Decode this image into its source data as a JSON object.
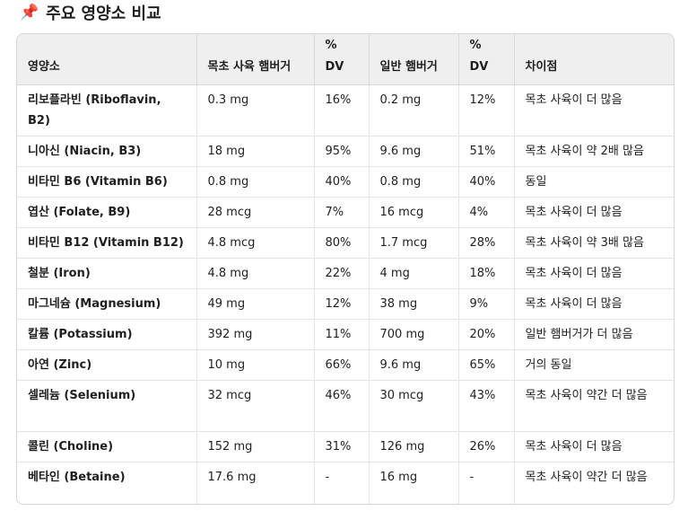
{
  "title": "주요 영양소 비교",
  "pin_icon": "pushpin-icon",
  "headers": [
    "영양소",
    "목초 사육 햄버거",
    "% DV",
    "일반 햄버거",
    "% DV",
    "차이점"
  ],
  "rows": [
    [
      "리보플라빈 (Riboflavin, B2)",
      "0.3 mg",
      "16%",
      "0.2 mg",
      "12%",
      "목초 사육이 더 많음"
    ],
    [
      "니아신 (Niacin, B3)",
      "18 mg",
      "95%",
      "9.6 mg",
      "51%",
      "목초 사육이 약 2배 많음"
    ],
    [
      "비타민 B6 (Vitamin B6)",
      "0.8 mg",
      "40%",
      "0.8 mg",
      "40%",
      "동일"
    ],
    [
      "엽산 (Folate, B9)",
      "28 mcg",
      "7%",
      "16 mcg",
      "4%",
      "목초 사육이 더 많음"
    ],
    [
      "비타민 B12 (Vitamin B12)",
      "4.8 mcg",
      "80%",
      "1.7 mcg",
      "28%",
      "목초 사육이 약 3배 많음"
    ],
    [
      "철분 (Iron)",
      "4.8 mg",
      "22%",
      "4 mg",
      "18%",
      "목초 사육이 더 많음"
    ],
    [
      "마그네슘 (Magnesium)",
      "49 mg",
      "12%",
      "38 mg",
      "9%",
      "목초 사육이 더 많음"
    ],
    [
      "칼륨 (Potassium)",
      "392 mg",
      "11%",
      "700 mg",
      "20%",
      "일반 햄버거가 더 많음"
    ],
    [
      "아연 (Zinc)",
      "10 mg",
      "66%",
      "9.6 mg",
      "65%",
      "거의 동일"
    ],
    [
      "셀레늄 (Selenium)",
      "32 mcg",
      "46%",
      "30 mcg",
      "43%",
      "목초 사육이 약간 더 많음"
    ],
    [
      "콜린 (Choline)",
      "152 mg",
      "31%",
      "126 mg",
      "26%",
      "목초 사육이 더 많음"
    ],
    [
      "베타인 (Betaine)",
      "17.6 mg",
      "-",
      "16 mg",
      "-",
      "목초 사육이 약간 더 많음"
    ]
  ]
}
